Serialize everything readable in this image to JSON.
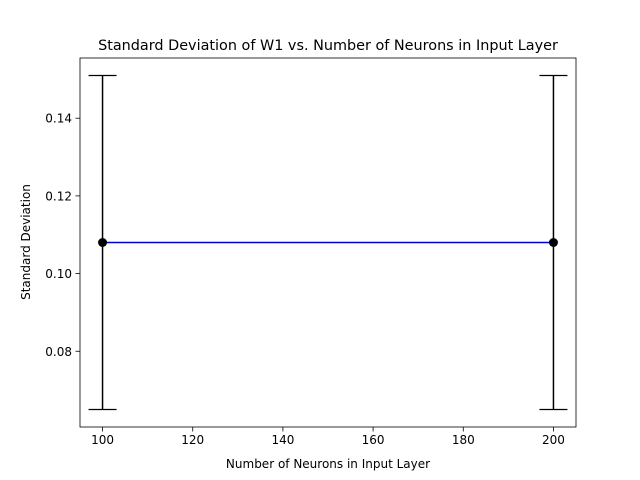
{
  "chart_data": {
    "type": "line",
    "title": "Standard Deviation of W1 vs. Number of Neurons in Input Layer",
    "xlabel": "Number of Neurons in Input Layer",
    "ylabel": "Standard Deviation",
    "xlim": [
      95,
      205
    ],
    "ylim": [
      0.0605,
      0.1555
    ],
    "x_ticks": [
      100,
      120,
      140,
      160,
      180,
      200
    ],
    "y_ticks": [
      0.08,
      0.1,
      0.12,
      0.14
    ],
    "y_tick_labels": [
      "0.08",
      "0.10",
      "0.12",
      "0.14"
    ],
    "grid": false,
    "legend": false,
    "series": [
      {
        "x": [
          100,
          200
        ],
        "y": [
          0.108,
          0.108
        ],
        "yerr": [
          0.043,
          0.043
        ],
        "line_color": "#0000cc",
        "marker_color": "#000000",
        "errorbar_color": "#000000"
      }
    ]
  }
}
